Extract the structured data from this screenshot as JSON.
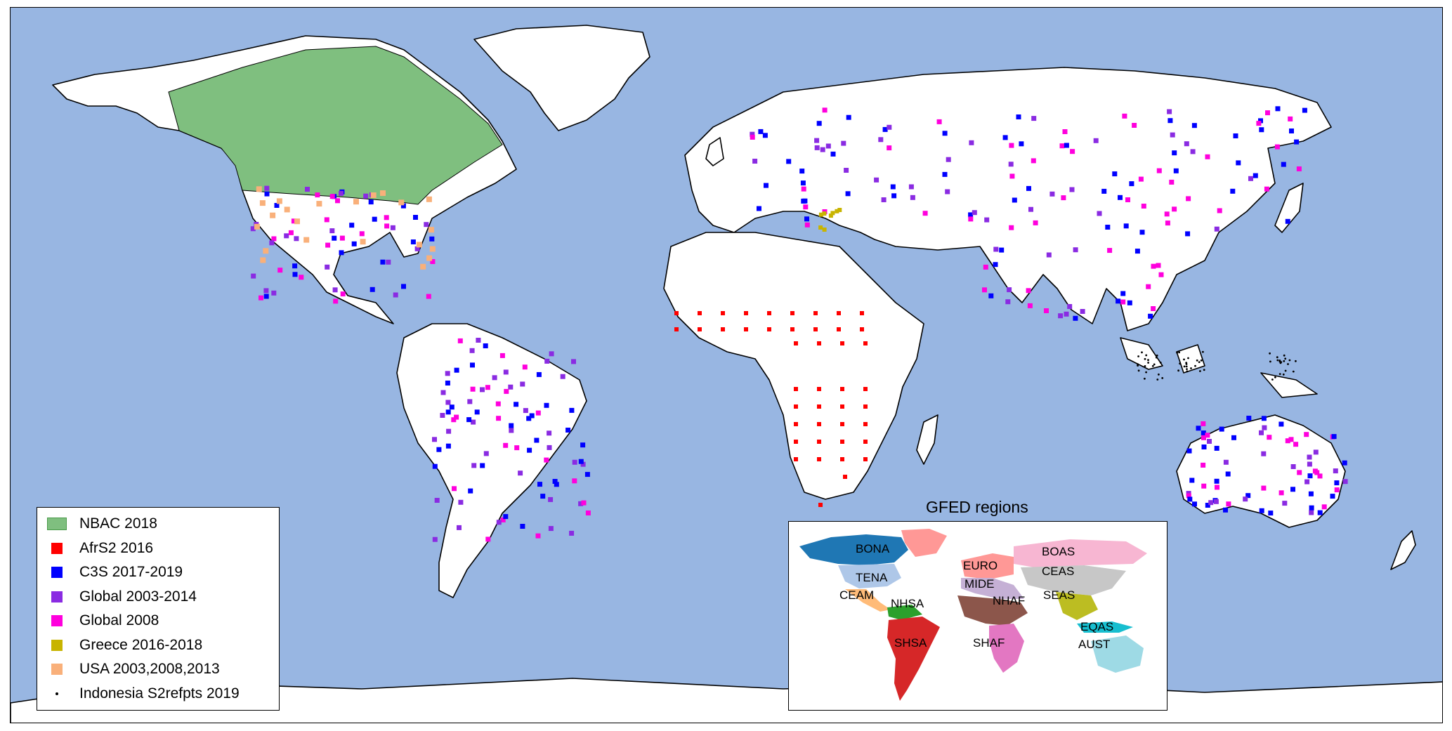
{
  "legend": {
    "items": [
      {
        "label": "NBAC 2018",
        "color": "#7fbf7f",
        "marker": "rect"
      },
      {
        "label": "AfrS2 2016",
        "color": "#ff0000",
        "marker": "square"
      },
      {
        "label": "C3S 2017-2019",
        "color": "#0000ff",
        "marker": "square"
      },
      {
        "label": "Global 2003-2014",
        "color": "#8a2be2",
        "marker": "square"
      },
      {
        "label": "Global 2008",
        "color": "#ff00dd",
        "marker": "square"
      },
      {
        "label": "Greece 2016-2018",
        "color": "#c8b400",
        "marker": "square"
      },
      {
        "label": "USA 2003,2008,2013",
        "color": "#f9b07a",
        "marker": "square"
      },
      {
        "label": "Indonesia S2refpts 2019",
        "color": "#000000",
        "marker": "dot"
      }
    ]
  },
  "inset": {
    "title": "GFED regions",
    "regions": [
      {
        "label": "BONA",
        "color": "#1f77b4"
      },
      {
        "label": "TENA",
        "color": "#aec7e8"
      },
      {
        "label": "CEAM",
        "color": "#ffbb78"
      },
      {
        "label": "NHSA",
        "color": "#2ca02c"
      },
      {
        "label": "SHSA",
        "color": "#d62728"
      },
      {
        "label": "EURO",
        "color": "#ff9896"
      },
      {
        "label": "MIDE",
        "color": "#c5b0d5"
      },
      {
        "label": "NHAF",
        "color": "#8c564b"
      },
      {
        "label": "SHAF",
        "color": "#e377c2"
      },
      {
        "label": "BOAS",
        "color": "#f7b6d2"
      },
      {
        "label": "CEAS",
        "color": "#c7c7c7"
      },
      {
        "label": "SEAS",
        "color": "#bcbd22"
      },
      {
        "label": "EQAS",
        "color": "#17becf"
      },
      {
        "label": "AUST",
        "color": "#9edae5"
      }
    ]
  },
  "colors": {
    "ocean": "#98b6e2",
    "land": "#ffffff",
    "nbac": "#7fbf7f",
    "greenland_gfed": "#ff9896"
  }
}
